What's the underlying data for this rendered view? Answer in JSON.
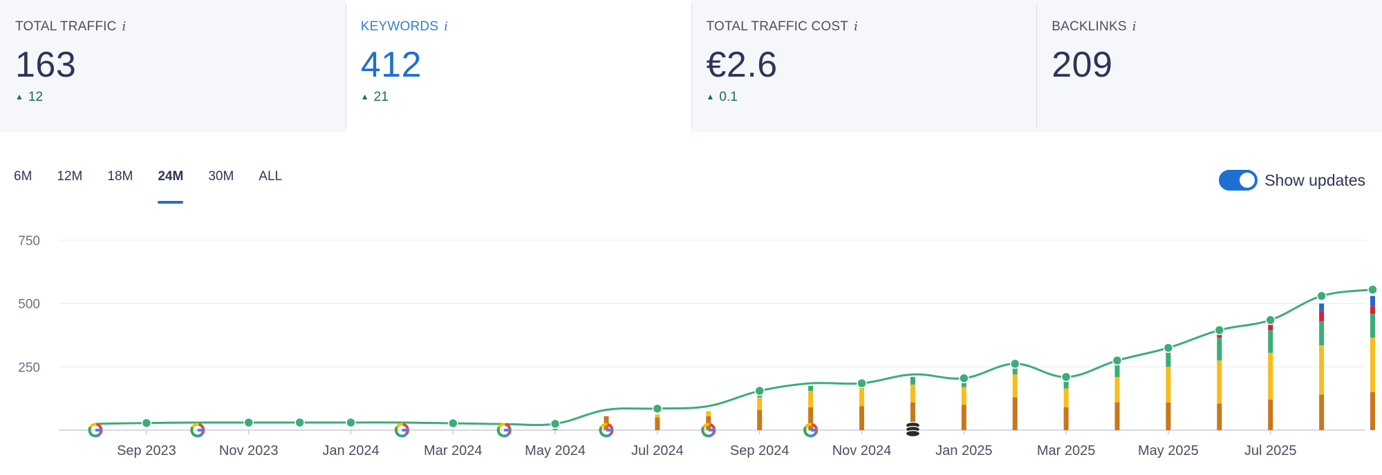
{
  "metrics": [
    {
      "title": "TOTAL TRAFFIC",
      "info": "i",
      "value": "163",
      "delta": "12"
    },
    {
      "title": "KEYWORDS",
      "info": "i",
      "value": "412",
      "delta": "21"
    },
    {
      "title": "TOTAL TRAFFIC COST",
      "info": "i",
      "value": "€2.6",
      "delta": "0.1"
    },
    {
      "title": "BACKLINKS",
      "info": "i",
      "value": "209",
      "delta": ""
    }
  ],
  "ranges": [
    "6M",
    "12M",
    "18M",
    "24M",
    "30M",
    "ALL"
  ],
  "active_range": "24M",
  "toggle": {
    "label": "Show updates",
    "on": true
  },
  "colors": {
    "line": "#3aad78",
    "pos1_3": "#2a66d1",
    "pos4_10": "#d6223b",
    "pos11_20": "#3aad78",
    "pos21_50": "#f7bd1d",
    "pos51_100": "#c9771a",
    "accent": "#1f6fd2"
  },
  "chart_data": {
    "type": "line",
    "title": "Total Traffic",
    "ylim": [
      0,
      750
    ],
    "yticks": [
      250,
      500,
      750
    ],
    "xtick_labels": [
      "Sep 2023",
      "Nov 2023",
      "Jan 2024",
      "Mar 2024",
      "May 2024",
      "Jul 2024",
      "Sep 2024",
      "Nov 2024",
      "Jan 2025",
      "Mar 2025",
      "May 2025",
      "Jul 2025"
    ],
    "xtick_index": [
      1,
      3,
      5,
      7,
      9,
      11,
      13,
      15,
      17,
      19,
      21,
      23
    ],
    "series": [
      {
        "name": "Traffic",
        "values": [
          25,
          28,
          30,
          30,
          30,
          30,
          30,
          27,
          24,
          25,
          80,
          85,
          95,
          155,
          185,
          185,
          220,
          205,
          262,
          210,
          275,
          325,
          395,
          435,
          530,
          555
        ]
      }
    ],
    "stack_keys": [
      "pos51_100",
      "pos21_50",
      "pos11_20",
      "pos4_10",
      "pos1_3"
    ],
    "stacks": [
      {
        "i": 9,
        "v": [
          0,
          0,
          5,
          0,
          0
        ]
      },
      {
        "i": 10,
        "v": [
          55,
          0,
          0,
          0,
          0
        ]
      },
      {
        "i": 11,
        "v": [
          50,
          12,
          0,
          0,
          0
        ]
      },
      {
        "i": 12,
        "v": [
          55,
          20,
          0,
          0,
          0
        ]
      },
      {
        "i": 13,
        "v": [
          80,
          50,
          15,
          0,
          0
        ]
      },
      {
        "i": 14,
        "v": [
          90,
          65,
          20,
          0,
          0
        ]
      },
      {
        "i": 15,
        "v": [
          95,
          70,
          20,
          0,
          0
        ]
      },
      {
        "i": 16,
        "v": [
          110,
          70,
          30,
          0,
          0
        ]
      },
      {
        "i": 17,
        "v": [
          100,
          70,
          20,
          0,
          0
        ]
      },
      {
        "i": 18,
        "v": [
          130,
          90,
          40,
          0,
          0
        ]
      },
      {
        "i": 19,
        "v": [
          90,
          75,
          30,
          0,
          0
        ]
      },
      {
        "i": 20,
        "v": [
          110,
          100,
          50,
          0,
          0
        ]
      },
      {
        "i": 21,
        "v": [
          110,
          140,
          55,
          10,
          0
        ]
      },
      {
        "i": 22,
        "v": [
          105,
          170,
          90,
          20,
          0
        ]
      },
      {
        "i": 23,
        "v": [
          120,
          185,
          90,
          25,
          0
        ]
      },
      {
        "i": 24,
        "v": [
          140,
          195,
          95,
          40,
          30
        ]
      },
      {
        "i": 25,
        "v": [
          150,
          215,
          95,
          30,
          40
        ]
      }
    ],
    "google_updates": [
      0,
      2,
      6,
      8,
      10,
      12,
      14
    ],
    "other_updates": [
      16
    ]
  }
}
